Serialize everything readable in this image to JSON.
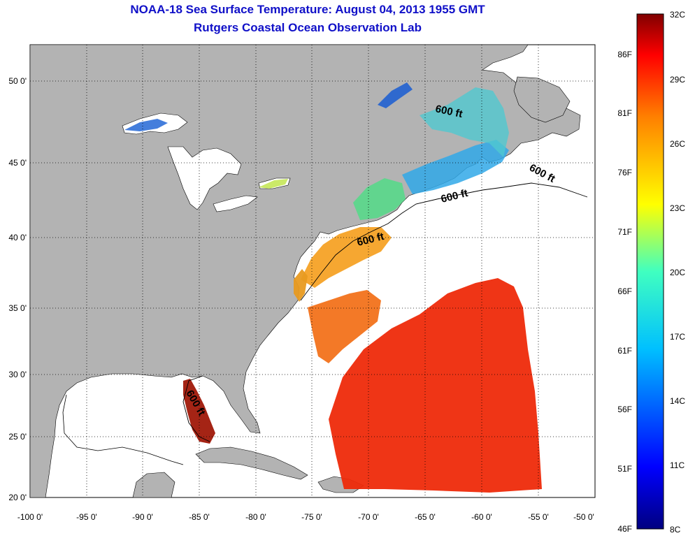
{
  "title": {
    "line1": "NOAA-18 Sea Surface Temperature:  August 04, 2013 1955 GMT",
    "line2": "Rutgers Coastal Ocean Observation Lab"
  },
  "map": {
    "lon_range": [
      -100,
      -50
    ],
    "lat_range": [
      20,
      52.5
    ],
    "lon_ticks": [
      "-100 0'",
      "-95 0'",
      "-90 0'",
      "-85 0'",
      "-80 0'",
      "-75 0'",
      "-70 0'",
      "-65 0'",
      "-60 0'",
      "-55 0'",
      "-50 0'"
    ],
    "lat_ticks": [
      "50 0'",
      "45 0'",
      "40 0'",
      "35 0'",
      "30 0'",
      "25 0'",
      "20 0'"
    ],
    "grid": "dotted",
    "land_color": "#b3b3b3",
    "no_data_color": "#ffffff",
    "contour_labels": [
      "600 ft",
      "600 ft",
      "600 ft",
      "600 ft",
      "600 ft"
    ]
  },
  "colorbar": {
    "celsius": [
      "32C",
      "29C",
      "26C",
      "23C",
      "20C",
      "17C",
      "14C",
      "11C",
      "8C"
    ],
    "fahrenheit": [
      "86F",
      "81F",
      "76F",
      "71F",
      "66F",
      "61F",
      "56F",
      "51F",
      "46F"
    ],
    "colors": [
      "#800000",
      "#ff0000",
      "#ff8000",
      "#ffff00",
      "#80ff80",
      "#00ffff",
      "#0080ff",
      "#0000ff",
      "#000080"
    ]
  }
}
